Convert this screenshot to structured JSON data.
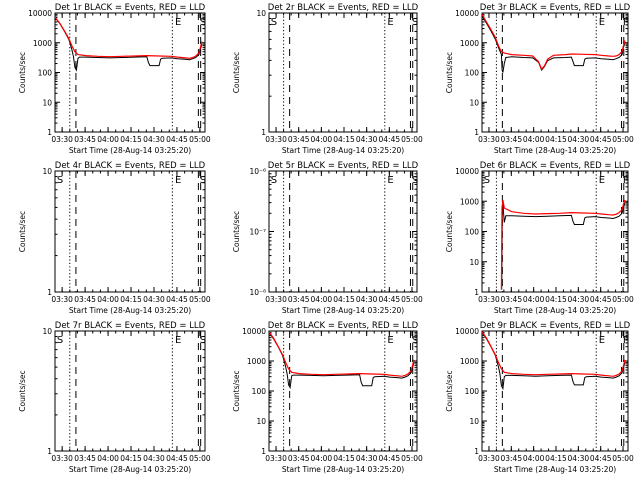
{
  "colors": {
    "events": "#000000",
    "lld": "#ff0000",
    "axis": "#000000",
    "background": "#ffffff"
  },
  "common": {
    "xlabel": "Start Time (28-Aug-14 03:25:20)",
    "ylabel": "Counts/sec",
    "xticks": [
      "03:30",
      "03:45",
      "04:00",
      "04:15",
      "04:30",
      "04:45",
      "05:00"
    ],
    "xtick_minutes": [
      4.67,
      19.67,
      34.67,
      49.67,
      64.67,
      79.67,
      94.67
    ],
    "xlim_minutes": [
      0,
      98
    ],
    "x_unit": "minutes after 03:25:20",
    "vlines_dotted": [
      9.67,
      76.67
    ],
    "vlines_dashed": [
      13.67,
      93.67,
      95.17
    ],
    "marker_x": {
      "S": 1.2,
      "E": 78.4,
      "S2": 94.6
    }
  },
  "chart_data": [
    {
      "type": "line",
      "title": "Det 1r BLACK = Events, RED = LLD",
      "yscale": "log",
      "ylim": [
        1,
        10000
      ],
      "yticks": [
        "1",
        "10",
        "100",
        "1000",
        "10000"
      ],
      "markers": [
        "",
        "E",
        "S"
      ],
      "series": [
        {
          "name": "Events",
          "x": [
            0,
            3,
            6,
            9,
            10,
            11,
            12,
            13,
            14,
            15,
            16,
            20,
            28,
            36,
            44,
            52,
            60,
            61,
            62,
            68,
            69,
            70,
            76,
            80,
            85,
            88,
            90,
            92,
            94,
            95,
            96
          ],
          "values": [
            7000,
            4500,
            2500,
            1300,
            900,
            600,
            350,
            150,
            120,
            300,
            330,
            330,
            320,
            310,
            320,
            330,
            340,
            220,
            170,
            170,
            280,
            300,
            310,
            290,
            280,
            270,
            290,
            320,
            400,
            600,
            900
          ]
        },
        {
          "name": "LLD",
          "x": [
            0,
            3,
            6,
            9,
            11,
            13,
            15,
            20,
            28,
            36,
            44,
            52,
            60,
            68,
            76,
            80,
            85,
            88,
            90,
            92,
            94,
            95,
            96
          ],
          "values": [
            7200,
            4600,
            2600,
            1400,
            800,
            500,
            400,
            370,
            350,
            340,
            350,
            360,
            370,
            360,
            350,
            330,
            310,
            300,
            320,
            360,
            450,
            700,
            1100
          ]
        }
      ]
    },
    {
      "type": "line",
      "title": "Det 2r BLACK = Events, RED = LLD",
      "yscale": "log",
      "ylim": [
        1,
        10
      ],
      "yticks": [
        "1",
        "10"
      ],
      "markers": [
        "S",
        "E",
        "S"
      ],
      "series": []
    },
    {
      "type": "line",
      "title": "Det 3r BLACK = Events, RED = LLD",
      "yscale": "log",
      "ylim": [
        1,
        10000
      ],
      "yticks": [
        "1",
        "10",
        "100",
        "1000",
        "10000"
      ],
      "markers": [
        "",
        "E",
        "F"
      ],
      "series": [
        {
          "name": "Events",
          "x": [
            0,
            3,
            6,
            9,
            11,
            13,
            13.5,
            14,
            15,
            16,
            20,
            28,
            34,
            38,
            40,
            42,
            44,
            48,
            56,
            60,
            62,
            68,
            69,
            70,
            76,
            80,
            85,
            88,
            90,
            92,
            94,
            95,
            96
          ],
          "values": [
            8000,
            4500,
            2500,
            1300,
            700,
            400,
            120,
            100,
            200,
            320,
            340,
            320,
            310,
            220,
            120,
            160,
            250,
            310,
            320,
            330,
            170,
            170,
            280,
            300,
            310,
            290,
            280,
            270,
            290,
            320,
            400,
            700,
            1000
          ]
        },
        {
          "name": "LLD",
          "x": [
            0,
            3,
            6,
            9,
            11,
            13,
            15,
            20,
            28,
            34,
            38,
            40,
            42,
            44,
            48,
            56,
            60,
            68,
            76,
            80,
            85,
            88,
            90,
            92,
            94,
            95,
            96
          ],
          "values": [
            9000,
            5000,
            2800,
            1500,
            800,
            500,
            450,
            400,
            380,
            360,
            230,
            130,
            170,
            280,
            380,
            400,
            420,
            410,
            400,
            380,
            360,
            350,
            360,
            400,
            500,
            800,
            1200
          ]
        }
      ]
    },
    {
      "type": "line",
      "title": "Det 4r BLACK = Events, RED = LLD",
      "yscale": "log",
      "ylim": [
        1,
        10
      ],
      "yticks": [
        "1",
        "10"
      ],
      "markers": [
        "S",
        "E",
        "S"
      ],
      "series": []
    },
    {
      "type": "line",
      "title": "Det 5r BLACK = Events, RED = LLD",
      "yscale": "log",
      "ylim": [
        1e-08,
        1e-06
      ],
      "yticks": [
        "10⁻⁸",
        "10⁻⁷",
        "10⁻⁶"
      ],
      "markers": [
        "S",
        "E",
        "S"
      ],
      "series": []
    },
    {
      "type": "line",
      "title": "Det 6r BLACK = Events, RED = LLD",
      "yscale": "log",
      "ylim": [
        1,
        10000
      ],
      "yticks": [
        "1",
        "10",
        "100",
        "1000",
        "10000"
      ],
      "markers": [
        "S",
        "E",
        "F"
      ],
      "series": [
        {
          "name": "Events",
          "x": [
            13.2,
            13.6,
            14,
            14.5,
            15,
            16,
            20,
            28,
            36,
            44,
            52,
            60,
            61,
            62,
            68,
            69,
            70,
            76,
            80,
            85,
            88,
            90,
            92,
            94,
            95,
            96
          ],
          "values": [
            1.2,
            300,
            900,
            400,
            200,
            330,
            330,
            320,
            310,
            320,
            330,
            340,
            220,
            170,
            170,
            280,
            300,
            310,
            290,
            280,
            270,
            290,
            320,
            400,
            600,
            900
          ]
        },
        {
          "name": "LLD",
          "x": [
            13,
            13.4,
            14,
            15,
            20,
            28,
            36,
            44,
            52,
            60,
            68,
            76,
            80,
            85,
            88,
            90,
            92,
            94,
            95,
            96
          ],
          "values": [
            1.2,
            600,
            1100,
            600,
            450,
            400,
            380,
            390,
            400,
            420,
            410,
            400,
            380,
            360,
            350,
            370,
            420,
            520,
            800,
            1100
          ]
        }
      ]
    },
    {
      "type": "line",
      "title": "Det 7r BLACK = Events, RED = LLD",
      "yscale": "log",
      "ylim": [
        1,
        10
      ],
      "yticks": [
        "1",
        "10"
      ],
      "markers": [
        "S",
        "E",
        "S"
      ],
      "series": []
    },
    {
      "type": "line",
      "title": "Det 8r BLACK = Events, RED = LLD",
      "yscale": "log",
      "ylim": [
        1,
        10000
      ],
      "yticks": [
        "1",
        "10",
        "100",
        "1000",
        "10000"
      ],
      "markers": [
        "",
        "E",
        "S"
      ],
      "series": [
        {
          "name": "Events",
          "x": [
            0,
            3,
            6,
            9,
            10,
            11,
            12,
            13,
            14,
            15,
            16,
            20,
            28,
            36,
            44,
            52,
            60,
            61,
            62,
            68,
            69,
            70,
            76,
            80,
            85,
            88,
            90,
            92,
            94,
            95,
            96
          ],
          "values": [
            9000,
            5500,
            3000,
            1500,
            1000,
            650,
            380,
            160,
            130,
            320,
            340,
            340,
            330,
            320,
            330,
            340,
            350,
            200,
            150,
            150,
            280,
            300,
            310,
            290,
            280,
            270,
            290,
            320,
            400,
            600,
            900
          ]
        },
        {
          "name": "LLD",
          "x": [
            0,
            3,
            6,
            9,
            11,
            13,
            15,
            20,
            28,
            36,
            44,
            52,
            60,
            68,
            76,
            80,
            85,
            88,
            90,
            92,
            94,
            95,
            96
          ],
          "values": [
            9500,
            5800,
            3100,
            1600,
            900,
            550,
            420,
            380,
            360,
            350,
            360,
            370,
            380,
            370,
            360,
            340,
            320,
            310,
            330,
            370,
            460,
            700,
            1100
          ]
        }
      ]
    },
    {
      "type": "line",
      "title": "Det 9r BLACK = Events, RED = LLD",
      "yscale": "log",
      "ylim": [
        1,
        10000
      ],
      "yticks": [
        "1",
        "10",
        "100",
        "1000",
        "10000"
      ],
      "markers": [
        "",
        "E",
        "F"
      ],
      "series": [
        {
          "name": "Events",
          "x": [
            0,
            3,
            6,
            9,
            10,
            11,
            12,
            13,
            14,
            15,
            16,
            20,
            28,
            36,
            44,
            52,
            60,
            61,
            62,
            68,
            69,
            70,
            76,
            80,
            85,
            88,
            90,
            92,
            94,
            95,
            96
          ],
          "values": [
            9000,
            5500,
            3000,
            1500,
            1000,
            650,
            380,
            150,
            120,
            300,
            330,
            330,
            320,
            310,
            320,
            330,
            340,
            210,
            160,
            160,
            280,
            300,
            310,
            290,
            280,
            270,
            290,
            320,
            400,
            600,
            900
          ]
        },
        {
          "name": "LLD",
          "x": [
            0,
            3,
            6,
            9,
            11,
            13,
            15,
            20,
            28,
            36,
            44,
            52,
            60,
            68,
            76,
            80,
            85,
            88,
            90,
            92,
            94,
            95,
            96
          ],
          "values": [
            9500,
            5800,
            3100,
            1600,
            900,
            550,
            420,
            380,
            360,
            350,
            360,
            370,
            380,
            370,
            360,
            340,
            320,
            310,
            330,
            370,
            460,
            700,
            1100
          ]
        }
      ]
    }
  ]
}
